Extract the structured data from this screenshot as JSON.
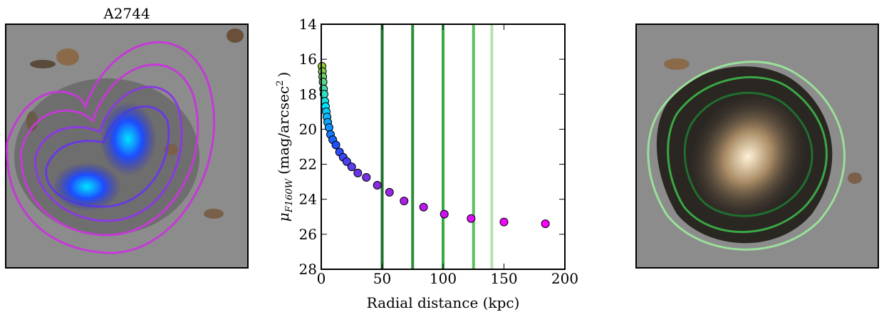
{
  "panel_title": "A2744",
  "chart_data": {
    "type": "scatter",
    "xlabel": "Radial distance (kpc)",
    "ylabel_symbol": "μ",
    "ylabel_subscript": "F160W",
    "ylabel_unit": "(mag/arcsec",
    "ylabel_superscript": "2",
    "ylabel_close": ")",
    "x": [
      0.6,
      0.9,
      1.2,
      1.5,
      1.9,
      2.3,
      2.9,
      3.5,
      4.1,
      4.7,
      5.3,
      6.4,
      7.6,
      9.4,
      12,
      15,
      18,
      21,
      25,
      30,
      37,
      46,
      56,
      68,
      84,
      101,
      123,
      150,
      184
    ],
    "values": [
      16.4,
      16.7,
      17.0,
      17.3,
      17.7,
      18.0,
      18.4,
      18.7,
      19.0,
      19.3,
      19.6,
      19.9,
      20.3,
      20.6,
      20.9,
      21.3,
      21.6,
      21.85,
      22.15,
      22.5,
      22.75,
      23.2,
      23.6,
      24.1,
      24.45,
      24.85,
      25.1,
      25.3,
      25.4
    ],
    "cmap": [
      "#9acd32",
      "#00e5ff",
      "#1e50ff",
      "#8a2be2",
      "#ff00ff"
    ],
    "vlines": [
      {
        "x": 50,
        "color": "#1f6f2e"
      },
      {
        "x": 75,
        "color": "#2e8b3a"
      },
      {
        "x": 100,
        "color": "#3aa845"
      },
      {
        "x": 125,
        "color": "#5cbf60"
      },
      {
        "x": 140,
        "color": "#b5e3b0"
      }
    ],
    "xlim": [
      0,
      200
    ],
    "xticks": [
      0,
      50,
      100,
      150,
      200
    ],
    "ylim": [
      14,
      28
    ],
    "yticks": [
      14,
      16,
      18,
      20,
      22,
      24,
      26,
      28
    ],
    "y_inverted": true
  }
}
